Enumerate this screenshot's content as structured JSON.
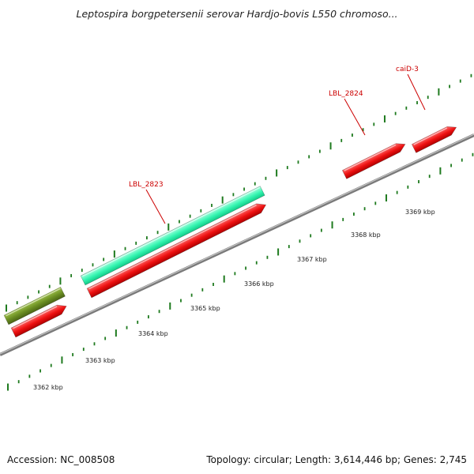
{
  "title": "Leptospira borgpetersenii serovar Hardjo-bovis L550 chromoso...",
  "footer": {
    "accession": "Accession: NC_008508",
    "summary": "Topology: circular; Length: 3,614,446 bp; Genes: 2,745"
  },
  "axis": {
    "unit": "kbp",
    "ticks": [
      "3362 kbp",
      "3363 kbp",
      "3364 kbp",
      "3365 kbp",
      "3366 kbp",
      "3367 kbp",
      "3368 kbp",
      "3369 kbp"
    ]
  },
  "gene_labels": [
    "LBL_2823",
    "LBL_2824",
    "caiD-3"
  ],
  "colors": {
    "backbone": "#8a8a8a",
    "tick": "#1e7a1e",
    "feature_red": "#ee1111",
    "feature_teal": "#33f5b0",
    "feature_olive": "#6b8e23",
    "label": "#cc0000"
  }
}
